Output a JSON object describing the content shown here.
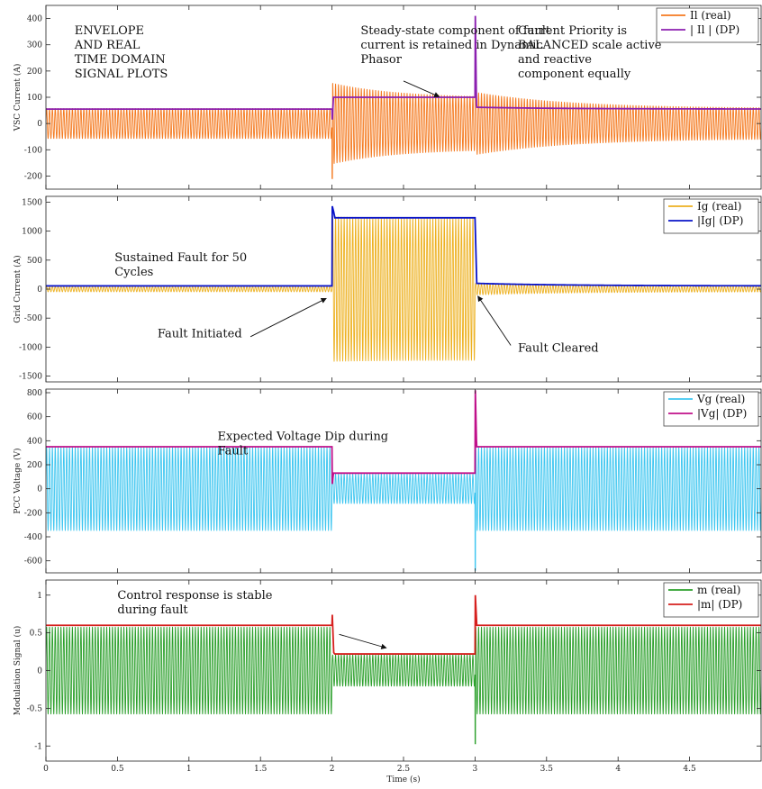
{
  "chart_data": [
    {
      "type": "line",
      "ylabel": "VSC Current (A)",
      "xlim": [
        0,
        5
      ],
      "ylim": [
        -250,
        450
      ],
      "yticks": [
        -200,
        -100,
        0,
        100,
        200,
        300,
        400
      ],
      "xticks": [
        0,
        0.5,
        1,
        1.5,
        2,
        2.5,
        3,
        3.5,
        4,
        4.5
      ],
      "grid": false,
      "legend": "top-right",
      "fault": [
        2,
        3
      ],
      "series": [
        {
          "name": "Il (real)",
          "kind": "oscillation",
          "color": "#F47A20",
          "pre_amplitude": 58,
          "fault_amplitude_start": 155,
          "fault_amplitude_end": 98,
          "post_amplitude_start": 120,
          "post_amplitude_end": 58,
          "fault_spike_min": -210,
          "clear_spike_max": 200
        },
        {
          "name": "| Il | (DP)",
          "kind": "envelope",
          "color": "#8B1FB0",
          "pre": 55,
          "fault": 100,
          "post_start": 62,
          "post_end": 55,
          "clear_spike": 410,
          "fault_dip": 15
        }
      ],
      "annotations": [
        {
          "lines": [
            "ENVELOPE",
            "AND REAL",
            "TIME DOMAIN",
            "SIGNAL PLOTS"
          ],
          "x": 0.2,
          "y": 340
        },
        {
          "lines": [
            "Steady-state component of fault",
            "current is retained in Dynamic",
            "Phasor"
          ],
          "x": 2.2,
          "y": 340
        },
        {
          "lines": [
            "Current Priority is",
            "BALANCED scale active",
            "and reactive",
            "component equally"
          ],
          "x": 3.3,
          "y": 340
        }
      ],
      "arrow": {
        "from": [
          2.5,
          162
        ],
        "to": [
          2.75,
          102
        ]
      }
    },
    {
      "type": "line",
      "ylabel": "Grid Current (A)",
      "xlim": [
        0,
        5
      ],
      "ylim": [
        -1600,
        1600
      ],
      "yticks": [
        -1500,
        -1000,
        -500,
        0,
        500,
        1000,
        1500
      ],
      "xticks": [
        0,
        0.5,
        1,
        1.5,
        2,
        2.5,
        3,
        3.5,
        4,
        4.5
      ],
      "grid": false,
      "legend": "top-right",
      "fault": [
        2,
        3
      ],
      "series": [
        {
          "name": "Ig (real)",
          "kind": "oscillation",
          "color": "#EDB120",
          "pre_amplitude": 45,
          "fault_amplitude_start": 1250,
          "fault_amplitude_end": 1230,
          "post_amplitude_start": 100,
          "post_amplitude_end": 45
        },
        {
          "name": "|Ig| (DP)",
          "kind": "envelope",
          "color": "#0A14C8",
          "pre": 55,
          "fault": 1230,
          "post_start": 100,
          "post_end": 55,
          "fault_spike": 1430
        }
      ],
      "annotations": [
        {
          "lines": [
            "Sustained Fault for 50",
            "Cycles"
          ],
          "x": 0.48,
          "y": 480
        },
        {
          "lines": [
            "Fault Initiated"
          ],
          "x": 0.78,
          "y": -830
        },
        {
          "lines": [
            "Fault Cleared"
          ],
          "x": 3.3,
          "y": -1080
        }
      ],
      "arrows": [
        {
          "from": [
            1.43,
            -820
          ],
          "to": [
            1.96,
            -160
          ]
        },
        {
          "from": [
            3.25,
            -970
          ],
          "to": [
            3.02,
            -120
          ]
        }
      ]
    },
    {
      "type": "line",
      "ylabel": "PCC Voltage (V)",
      "xlim": [
        0,
        5
      ],
      "ylim": [
        -700,
        830
      ],
      "yticks": [
        -600,
        -400,
        -200,
        0,
        200,
        400,
        600,
        800
      ],
      "xticks": [
        0,
        0.5,
        1,
        1.5,
        2,
        2.5,
        3,
        3.5,
        4,
        4.5
      ],
      "grid": false,
      "legend": "top-right",
      "fault": [
        2,
        3
      ],
      "series": [
        {
          "name": "Vg (real)",
          "kind": "oscillation",
          "color": "#3EC6F0",
          "pre_amplitude": 350,
          "fault_amplitude_start": 125,
          "fault_amplitude_end": 125,
          "post_amplitude_start": 350,
          "post_amplitude_end": 350,
          "clear_spike_min": -680
        },
        {
          "name": "|Vg|  (DP)",
          "kind": "envelope",
          "color": "#C0108A",
          "pre": 350,
          "fault": 130,
          "post_start": 350,
          "post_end": 350,
          "clear_spike": 820,
          "fault_dip": 40
        }
      ],
      "annotations": [
        {
          "lines": [
            "Expected Voltage Dip during",
            "Fault"
          ],
          "x": 1.2,
          "y": 405
        }
      ]
    },
    {
      "type": "line",
      "xlabel": "Time (s)",
      "ylabel": "Modulation Signal (u)",
      "xlim": [
        0,
        5
      ],
      "ylim": [
        -1.2,
        1.2
      ],
      "yticks": [
        -1,
        -0.5,
        0,
        0.5,
        1
      ],
      "xticks": [
        0,
        0.5,
        1,
        1.5,
        2,
        2.5,
        3,
        3.5,
        4,
        4.5
      ],
      "grid": false,
      "legend": "top-right",
      "fault": [
        2,
        3
      ],
      "series": [
        {
          "name": "m (real)",
          "kind": "oscillation",
          "color": "#2CA02C",
          "pre_amplitude": 0.58,
          "fault_amplitude_start": 0.21,
          "fault_amplitude_end": 0.21,
          "post_amplitude_start": 0.58,
          "post_amplitude_end": 0.58,
          "clear_spike_min": -0.97
        },
        {
          "name": "|m|  (DP)",
          "kind": "envelope",
          "color": "#D6201E",
          "pre": 0.6,
          "fault": 0.22,
          "post_start": 0.6,
          "post_end": 0.6,
          "clear_spike": 1.0,
          "fault_spike": 0.74
        }
      ],
      "annotations": [
        {
          "lines": [
            "Control response is stable",
            "during fault"
          ],
          "x": 0.5,
          "y": 0.95
        }
      ],
      "arrow": {
        "from": [
          2.05,
          0.48
        ],
        "to": [
          2.38,
          0.3
        ]
      }
    }
  ],
  "colors": {
    "axis": "#222222",
    "background": "#ffffff"
  }
}
